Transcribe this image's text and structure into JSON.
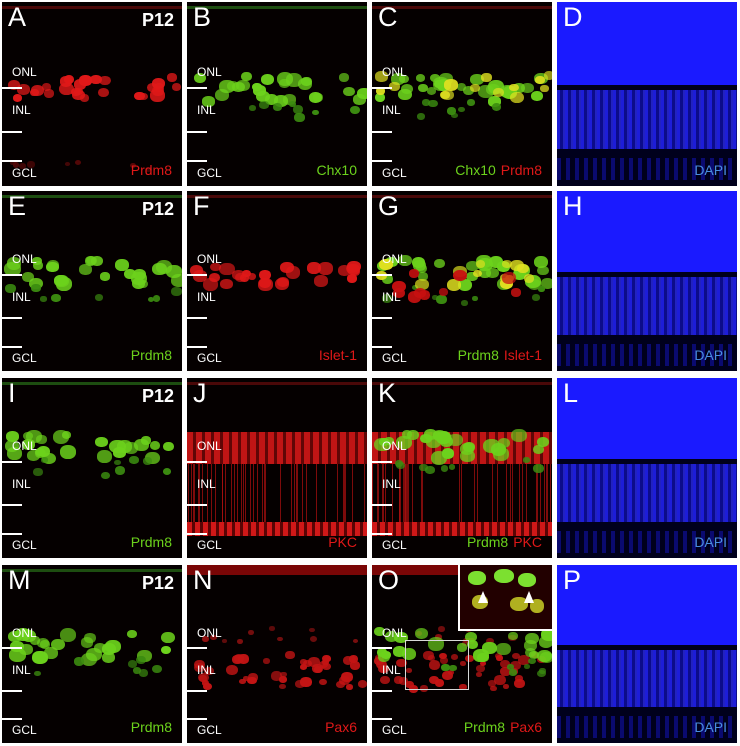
{
  "figure": {
    "age_label": "P12",
    "layers": {
      "onl": "ONL",
      "inl": "INL",
      "gcl": "GCL"
    },
    "colors": {
      "red": "#e01818",
      "green": "#6cd21c",
      "blue": "#4a8de0",
      "dapi_bg": "#1a1aff"
    },
    "rows": [
      {
        "panels": [
          {
            "letter": "A",
            "age": "P12",
            "stains": [
              {
                "text": "Prdm8",
                "color": "red"
              }
            ]
          },
          {
            "letter": "B",
            "stains": [
              {
                "text": "Chx10",
                "color": "green"
              }
            ]
          },
          {
            "letter": "C",
            "stains": [
              {
                "text": "Chx10",
                "color": "green"
              },
              {
                "text": "Prdm8",
                "color": "red"
              }
            ]
          },
          {
            "letter": "D",
            "stains": [
              {
                "text": "DAPI",
                "color": "blue"
              }
            ]
          }
        ]
      },
      {
        "panels": [
          {
            "letter": "E",
            "age": "P12",
            "stains": [
              {
                "text": "Prdm8",
                "color": "green"
              }
            ]
          },
          {
            "letter": "F",
            "stains": [
              {
                "text": "Islet-1",
                "color": "red"
              }
            ]
          },
          {
            "letter": "G",
            "stains": [
              {
                "text": "Prdm8",
                "color": "green"
              },
              {
                "text": "Islet-1",
                "color": "red"
              }
            ]
          },
          {
            "letter": "H",
            "stains": [
              {
                "text": "DAPI",
                "color": "blue"
              }
            ]
          }
        ]
      },
      {
        "panels": [
          {
            "letter": "I",
            "age": "P12",
            "stains": [
              {
                "text": "Prdm8",
                "color": "green"
              }
            ]
          },
          {
            "letter": "J",
            "stains": [
              {
                "text": "PKC",
                "color": "red"
              }
            ]
          },
          {
            "letter": "K",
            "stains": [
              {
                "text": "Prdm8",
                "color": "green"
              },
              {
                "text": "PKC",
                "color": "red"
              }
            ]
          },
          {
            "letter": "L",
            "stains": [
              {
                "text": "DAPI",
                "color": "blue"
              }
            ]
          }
        ]
      },
      {
        "panels": [
          {
            "letter": "M",
            "age": "P12",
            "stains": [
              {
                "text": "Prdm8",
                "color": "green"
              }
            ]
          },
          {
            "letter": "N",
            "stains": [
              {
                "text": "Pax6",
                "color": "red"
              }
            ]
          },
          {
            "letter": "O",
            "stains": [
              {
                "text": "Prdm8",
                "color": "green"
              },
              {
                "text": "Pax6",
                "color": "red"
              }
            ]
          },
          {
            "letter": "P",
            "stains": [
              {
                "text": "DAPI",
                "color": "blue"
              }
            ]
          }
        ]
      }
    ]
  }
}
